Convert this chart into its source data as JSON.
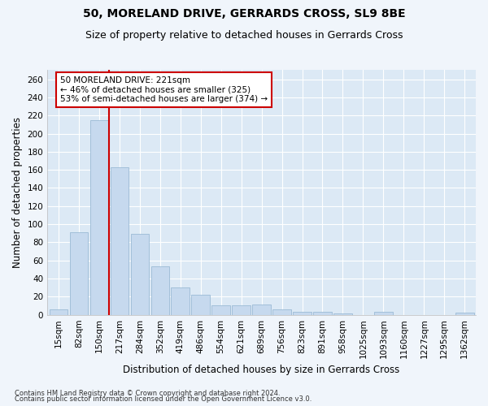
{
  "title": "50, MORELAND DRIVE, GERRARDS CROSS, SL9 8BE",
  "subtitle": "Size of property relative to detached houses in Gerrards Cross",
  "xlabel": "Distribution of detached houses by size in Gerrards Cross",
  "ylabel": "Number of detached properties",
  "categories": [
    "15sqm",
    "82sqm",
    "150sqm",
    "217sqm",
    "284sqm",
    "352sqm",
    "419sqm",
    "486sqm",
    "554sqm",
    "621sqm",
    "689sqm",
    "756sqm",
    "823sqm",
    "891sqm",
    "958sqm",
    "1025sqm",
    "1093sqm",
    "1160sqm",
    "1227sqm",
    "1295sqm",
    "1362sqm"
  ],
  "values": [
    6,
    91,
    215,
    163,
    89,
    53,
    30,
    22,
    10,
    10,
    11,
    6,
    3,
    3,
    1,
    0,
    3,
    0,
    0,
    0,
    2
  ],
  "bar_color": "#c6d9ee",
  "bar_edge_color": "#9bbad5",
  "vline_color": "#cc0000",
  "annotation_text": "50 MORELAND DRIVE: 221sqm\n← 46% of detached houses are smaller (325)\n53% of semi-detached houses are larger (374) →",
  "annotation_box_color": "#ffffff",
  "annotation_box_edge": "#cc0000",
  "ylim": [
    0,
    270
  ],
  "yticks": [
    0,
    20,
    40,
    60,
    80,
    100,
    120,
    140,
    160,
    180,
    200,
    220,
    240,
    260
  ],
  "footer1": "Contains HM Land Registry data © Crown copyright and database right 2024.",
  "footer2": "Contains public sector information licensed under the Open Government Licence v3.0.",
  "plot_bg_color": "#dce9f5",
  "fig_bg_color": "#f0f5fb",
  "title_fontsize": 10,
  "subtitle_fontsize": 9,
  "xlabel_fontsize": 8.5,
  "ylabel_fontsize": 8.5,
  "tick_fontsize": 7.5,
  "annot_fontsize": 7.5,
  "footer_fontsize": 6.0
}
